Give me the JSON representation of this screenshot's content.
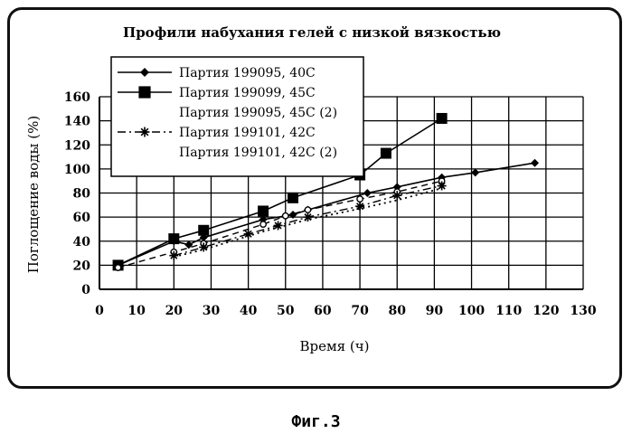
{
  "chart_data": {
    "type": "line",
    "title": "Профили набухания гелей с низкой вязкостью",
    "xlabel": "Время (ч)",
    "ylabel": "Поглощение воды (%)",
    "xlim": [
      0,
      130
    ],
    "ylim": [
      0,
      160
    ],
    "xticks": [
      0,
      10,
      20,
      30,
      40,
      50,
      60,
      70,
      80,
      90,
      100,
      110,
      120,
      130
    ],
    "yticks": [
      0,
      20,
      40,
      60,
      80,
      100,
      120,
      140,
      160
    ],
    "grid": true,
    "legend_position": "top-left",
    "series": [
      {
        "name": "Партия 199095, 40С",
        "marker": "diamond",
        "line": "solid",
        "x": [
          5,
          20,
          24,
          28,
          44,
          52,
          56,
          72,
          80,
          92,
          101,
          117
        ],
        "y": [
          20,
          40,
          37,
          43,
          58,
          62,
          66,
          80,
          85,
          93,
          97,
          105
        ]
      },
      {
        "name": "Партия 199099, 45С",
        "marker": "square",
        "line": "solid",
        "x": [
          5,
          20,
          28,
          44,
          52,
          70,
          77,
          92
        ],
        "y": [
          20,
          42,
          49,
          65,
          76,
          95,
          113,
          142
        ]
      },
      {
        "name": "Партия 199095, 45С (2)",
        "marker": "circle",
        "line": "dashed",
        "x": [
          5,
          20,
          28,
          44,
          50,
          56,
          70,
          80,
          92
        ],
        "y": [
          18,
          31,
          38,
          54,
          61,
          66,
          75,
          81,
          90
        ]
      },
      {
        "name": "Партия 199101, 42С",
        "marker": "asterisk",
        "line": "dashdot",
        "x": [
          20,
          28,
          40,
          48,
          56,
          70,
          80,
          92
        ],
        "y": [
          28,
          35,
          46,
          53,
          60,
          69,
          78,
          86
        ]
      },
      {
        "name": "Партия 199101, 42С (2)",
        "marker": "none",
        "line": "dotted",
        "x": [
          20,
          28,
          44,
          56,
          70,
          80,
          92
        ],
        "y": [
          27,
          33,
          48,
          58,
          67,
          74,
          84
        ]
      }
    ]
  },
  "figure_caption": "Фиг.3"
}
